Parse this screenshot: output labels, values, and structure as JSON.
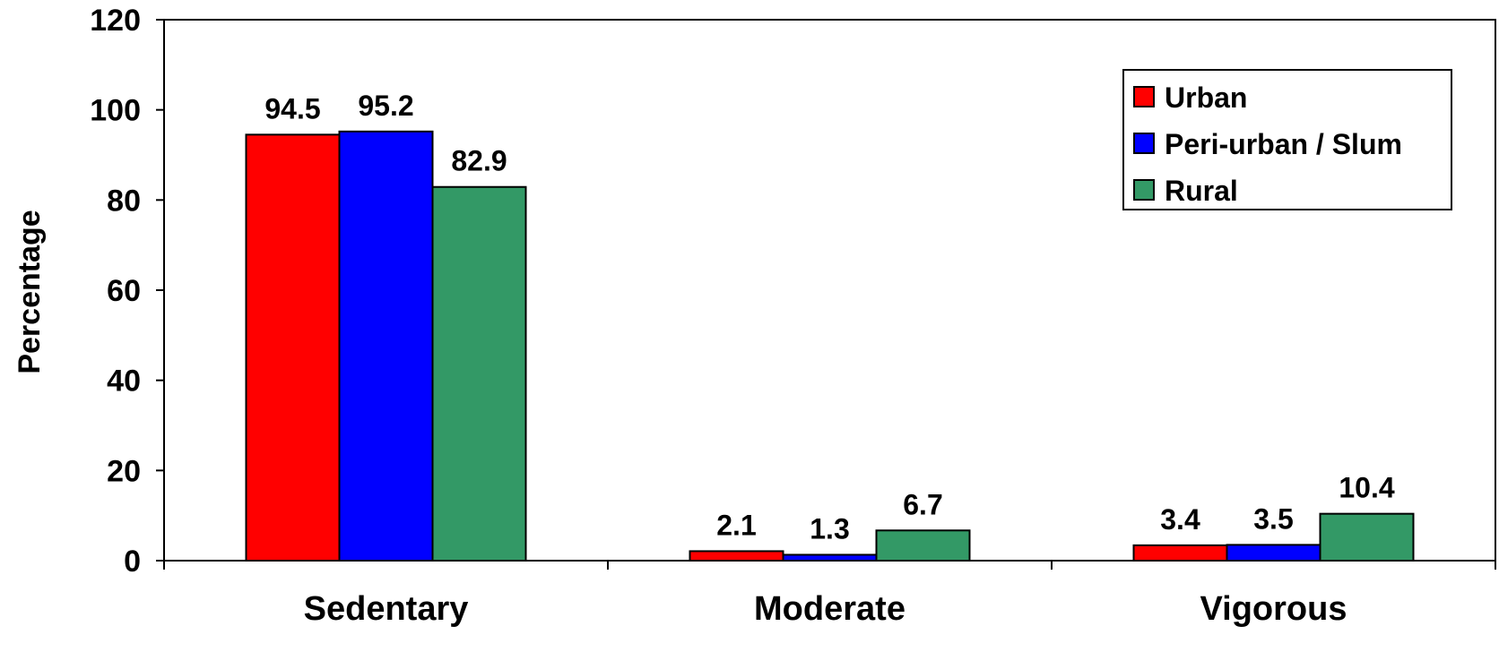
{
  "chart_data": {
    "type": "bar",
    "title": "",
    "xlabel": "",
    "ylabel": "Percentage",
    "ylim": [
      0,
      120
    ],
    "yticks": [
      0,
      20,
      40,
      60,
      80,
      100,
      120
    ],
    "categories": [
      "Sedentary",
      "Moderate",
      "Vigorous"
    ],
    "series": [
      {
        "name": "Urban",
        "color": "#ff0000",
        "values": [
          94.5,
          2.1,
          3.4
        ]
      },
      {
        "name": "Peri-urban / Slum",
        "color": "#0000ff",
        "values": [
          95.2,
          1.3,
          3.5
        ]
      },
      {
        "name": "Rural",
        "color": "#339966",
        "values": [
          82.9,
          6.7,
          10.4
        ]
      }
    ],
    "legend": "top-right",
    "grid": false
  }
}
